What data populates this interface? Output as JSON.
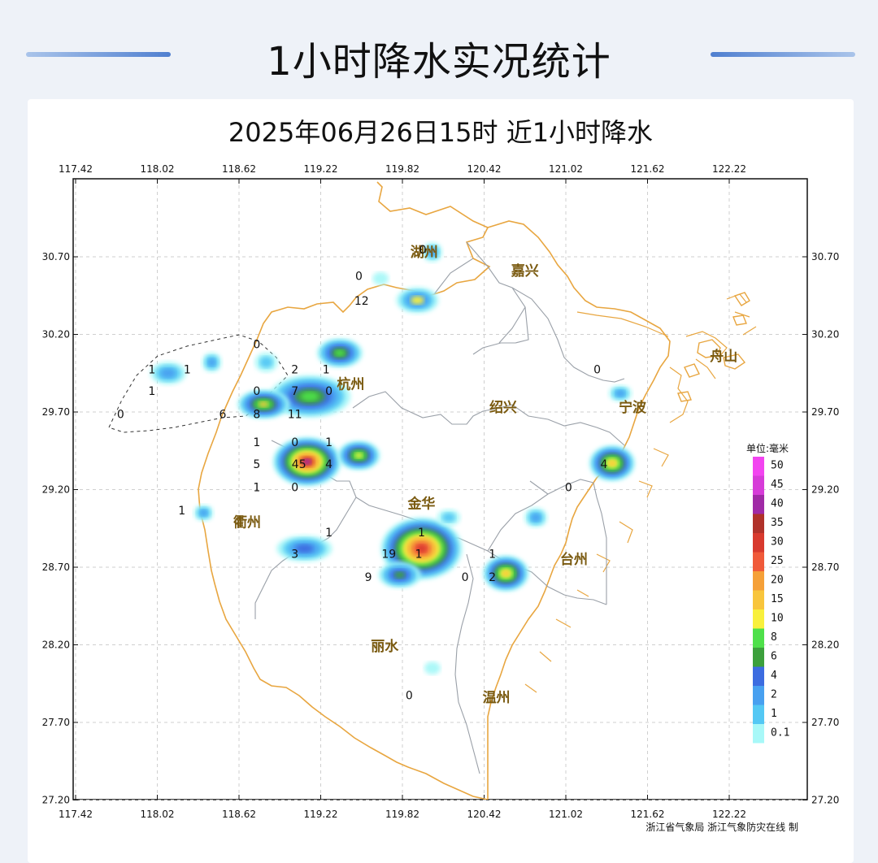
{
  "page_title": "1小时降水实况统计",
  "map": {
    "title": "2025年06月26日15时  近1小时降水",
    "lon_ticks": [
      "117.42",
      "118.02",
      "118.62",
      "119.22",
      "119.82",
      "120.42",
      "121.02",
      "121.62",
      "122.22"
    ],
    "lat_ticks": [
      "30.70",
      "30.20",
      "29.70",
      "29.20",
      "28.70",
      "28.20",
      "27.70",
      "27.20"
    ],
    "cities": [
      {
        "name": "湖州",
        "lon": 119.98,
        "lat": 30.7
      },
      {
        "name": "嘉兴",
        "lon": 120.72,
        "lat": 30.58
      },
      {
        "name": "舟山",
        "lon": 122.18,
        "lat": 30.03
      },
      {
        "name": "杭州",
        "lon": 119.44,
        "lat": 29.85
      },
      {
        "name": "绍兴",
        "lon": 120.56,
        "lat": 29.7
      },
      {
        "name": "宁波",
        "lon": 121.51,
        "lat": 29.7
      },
      {
        "name": "衢州",
        "lon": 118.68,
        "lat": 28.96
      },
      {
        "name": "金华",
        "lon": 119.96,
        "lat": 29.08
      },
      {
        "name": "台州",
        "lon": 121.08,
        "lat": 28.72
      },
      {
        "name": "丽水",
        "lon": 119.69,
        "lat": 28.16
      },
      {
        "name": "温州",
        "lon": 120.51,
        "lat": 27.83
      }
    ],
    "rain_values": [
      {
        "v": "0",
        "lon": 119.97,
        "lat": 30.72
      },
      {
        "v": "0",
        "lon": 119.5,
        "lat": 30.55
      },
      {
        "v": "12",
        "lon": 119.52,
        "lat": 30.39
      },
      {
        "v": "0",
        "lon": 118.75,
        "lat": 30.11
      },
      {
        "v": "1",
        "lon": 117.98,
        "lat": 29.95
      },
      {
        "v": "1",
        "lon": 118.24,
        "lat": 29.95
      },
      {
        "v": "2",
        "lon": 119.03,
        "lat": 29.95
      },
      {
        "v": "1",
        "lon": 119.26,
        "lat": 29.95
      },
      {
        "v": "1",
        "lon": 117.98,
        "lat": 29.81
      },
      {
        "v": "0",
        "lon": 118.75,
        "lat": 29.81
      },
      {
        "v": "7",
        "lon": 119.03,
        "lat": 29.81
      },
      {
        "v": "0",
        "lon": 119.28,
        "lat": 29.81
      },
      {
        "v": "0",
        "lon": 117.75,
        "lat": 29.66
      },
      {
        "v": "6",
        "lon": 118.5,
        "lat": 29.66
      },
      {
        "v": "8",
        "lon": 118.75,
        "lat": 29.66
      },
      {
        "v": "11",
        "lon": 119.03,
        "lat": 29.66
      },
      {
        "v": "1",
        "lon": 118.75,
        "lat": 29.48
      },
      {
        "v": "0",
        "lon": 119.03,
        "lat": 29.48
      },
      {
        "v": "1",
        "lon": 119.28,
        "lat": 29.48
      },
      {
        "v": "5",
        "lon": 118.75,
        "lat": 29.34
      },
      {
        "v": "45",
        "lon": 119.06,
        "lat": 29.34
      },
      {
        "v": "4",
        "lon": 119.28,
        "lat": 29.34
      },
      {
        "v": "1",
        "lon": 118.75,
        "lat": 29.19
      },
      {
        "v": "0",
        "lon": 119.03,
        "lat": 29.19
      },
      {
        "v": "1",
        "lon": 118.2,
        "lat": 29.04
      },
      {
        "v": "1",
        "lon": 119.28,
        "lat": 28.9
      },
      {
        "v": "3",
        "lon": 119.03,
        "lat": 28.76
      },
      {
        "v": "1",
        "lon": 119.96,
        "lat": 28.9
      },
      {
        "v": "19",
        "lon": 119.72,
        "lat": 28.76
      },
      {
        "v": "1",
        "lon": 119.94,
        "lat": 28.76
      },
      {
        "v": "9",
        "lon": 119.57,
        "lat": 28.61
      },
      {
        "v": "0",
        "lon": 120.28,
        "lat": 28.61
      },
      {
        "v": "1",
        "lon": 120.48,
        "lat": 28.76
      },
      {
        "v": "2",
        "lon": 120.48,
        "lat": 28.61
      },
      {
        "v": "0",
        "lon": 119.87,
        "lat": 27.85
      },
      {
        "v": "0",
        "lon": 121.04,
        "lat": 29.19
      },
      {
        "v": "4",
        "lon": 121.3,
        "lat": 29.34
      },
      {
        "v": "0",
        "lon": 121.25,
        "lat": 29.95
      }
    ],
    "legend": {
      "title": "单位:毫米",
      "items": [
        {
          "label": "50",
          "color": "#f244f0"
        },
        {
          "label": "45",
          "color": "#d63cd8"
        },
        {
          "label": "40",
          "color": "#a02aa6"
        },
        {
          "label": "35",
          "color": "#b0322a"
        },
        {
          "label": "30",
          "color": "#d83a2e"
        },
        {
          "label": "25",
          "color": "#f05a3a"
        },
        {
          "label": "20",
          "color": "#f5a038"
        },
        {
          "label": "15",
          "color": "#f8c53c"
        },
        {
          "label": "10",
          "color": "#f8f03c"
        },
        {
          "label": "8",
          "color": "#4ee04a"
        },
        {
          "label": "6",
          "color": "#3ca03c"
        },
        {
          "label": "4",
          "color": "#3c6ce0"
        },
        {
          "label": "2",
          "color": "#48a0f0"
        },
        {
          "label": "1",
          "color": "#54c8f4"
        },
        {
          "label": "0.1",
          "color": "#a8f8f8"
        }
      ]
    },
    "source": "浙江省气象局   浙江气象防灾在线 制"
  }
}
